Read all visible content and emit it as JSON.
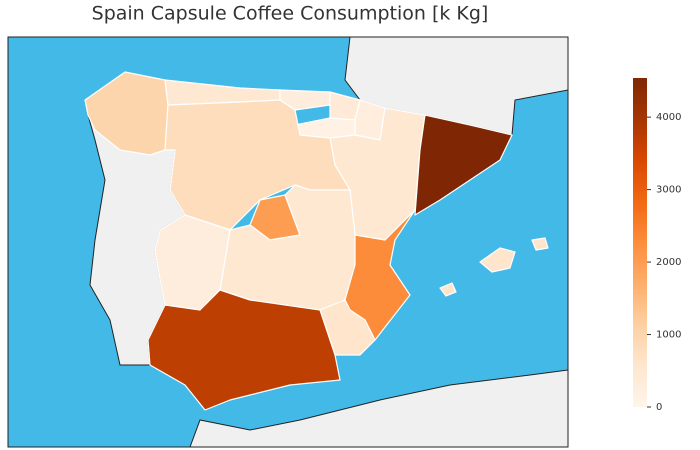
{
  "chart_data": {
    "type": "choropleth",
    "title": "Spain Capsule Coffee Consumption [k Kg]",
    "values": [
      1000,
      500,
      300,
      400,
      250,
      150,
      500,
      4540,
      800,
      2000,
      500,
      300,
      2300,
      600,
      3700,
      600
    ],
    "colormap": [
      "#fff5eb",
      "#fee6ce",
      "#fdd0a2",
      "#fdae6b",
      "#fd8d3c",
      "#f16913",
      "#d94801",
      "#a63603",
      "#7f2704"
    ],
    "ylim": [
      0,
      4540
    ],
    "yticks": [
      0,
      1000,
      2000,
      3000,
      4000
    ]
  }
}
